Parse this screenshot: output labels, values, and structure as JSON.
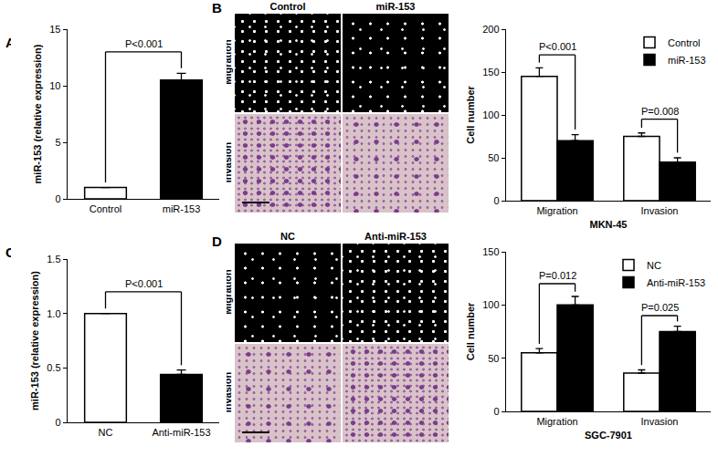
{
  "panel_labels": [
    "A",
    "B",
    "C",
    "D"
  ],
  "image_panels": [
    {
      "columns": [
        "Control",
        "miR-153"
      ],
      "rows": [
        "Migration",
        "Invasion"
      ]
    },
    {
      "columns": [
        "NC",
        "Anti-miR-153"
      ],
      "rows": [
        "Migration",
        "Invasion"
      ]
    }
  ],
  "chart_data": [
    {
      "type": "bar",
      "y_label": "miR-153 (relative expression)",
      "categories": [
        "Control",
        "miR-153"
      ],
      "values": [
        1,
        10.5
      ],
      "errors": [
        0,
        0.6
      ],
      "colors": [
        "#ffffff",
        "#000000"
      ],
      "ylim": [
        0,
        15
      ],
      "yticks": [
        0,
        5,
        10,
        15
      ],
      "annotations": [
        {
          "text": "P<0.001",
          "from": "Control",
          "to": "miR-153",
          "y": 13
        }
      ]
    },
    {
      "type": "bar",
      "y_label": "Cell number",
      "x_label": "MKN-45",
      "categories": [
        "Migration",
        "Invasion"
      ],
      "series": [
        {
          "name": "Control",
          "color": "#ffffff",
          "values": [
            145,
            75
          ],
          "errors": [
            10,
            4
          ]
        },
        {
          "name": "miR-153",
          "color": "#000000",
          "values": [
            70,
            45
          ],
          "errors": [
            7,
            5
          ]
        }
      ],
      "ylim": [
        0,
        200
      ],
      "yticks": [
        0,
        50,
        100,
        150,
        200
      ],
      "legend": "top right",
      "annotations": [
        {
          "text": "P<0.001",
          "category": "Migration",
          "y": 170
        },
        {
          "text": "P=0.008",
          "category": "Invasion",
          "y": 95
        }
      ]
    },
    {
      "type": "bar",
      "y_label": "miR-153 (relative expression)",
      "categories": [
        "NC",
        "Anti-miR-153"
      ],
      "values": [
        1,
        0.44
      ],
      "errors": [
        0,
        0.04
      ],
      "colors": [
        "#ffffff",
        "#000000"
      ],
      "ylim": [
        0,
        1.5
      ],
      "yticks": [
        0,
        0.5,
        {
          "value": 1,
          "label": "1.0"
        },
        1.5
      ],
      "annotations": [
        {
          "text": "P<0.001",
          "from": "NC",
          "to": "Anti-miR-153",
          "y": 1.2
        }
      ]
    },
    {
      "type": "bar",
      "y_label": "Cell number",
      "x_label": "SGC-7901",
      "categories": [
        "Migration",
        "Invasion"
      ],
      "series": [
        {
          "name": "NC",
          "color": "#ffffff",
          "values": [
            55,
            36
          ],
          "errors": [
            4,
            3
          ]
        },
        {
          "name": "Anti-miR-153",
          "color": "#000000",
          "values": [
            100,
            75
          ],
          "errors": [
            8,
            5
          ]
        }
      ],
      "ylim": [
        0,
        150
      ],
      "yticks": [
        0,
        50,
        100,
        150
      ],
      "legend": "top right",
      "annotations": [
        {
          "text": "P=0.012",
          "category": "Migration",
          "y": 120
        },
        {
          "text": "P=0.025",
          "category": "Invasion",
          "y": 90
        }
      ]
    }
  ]
}
